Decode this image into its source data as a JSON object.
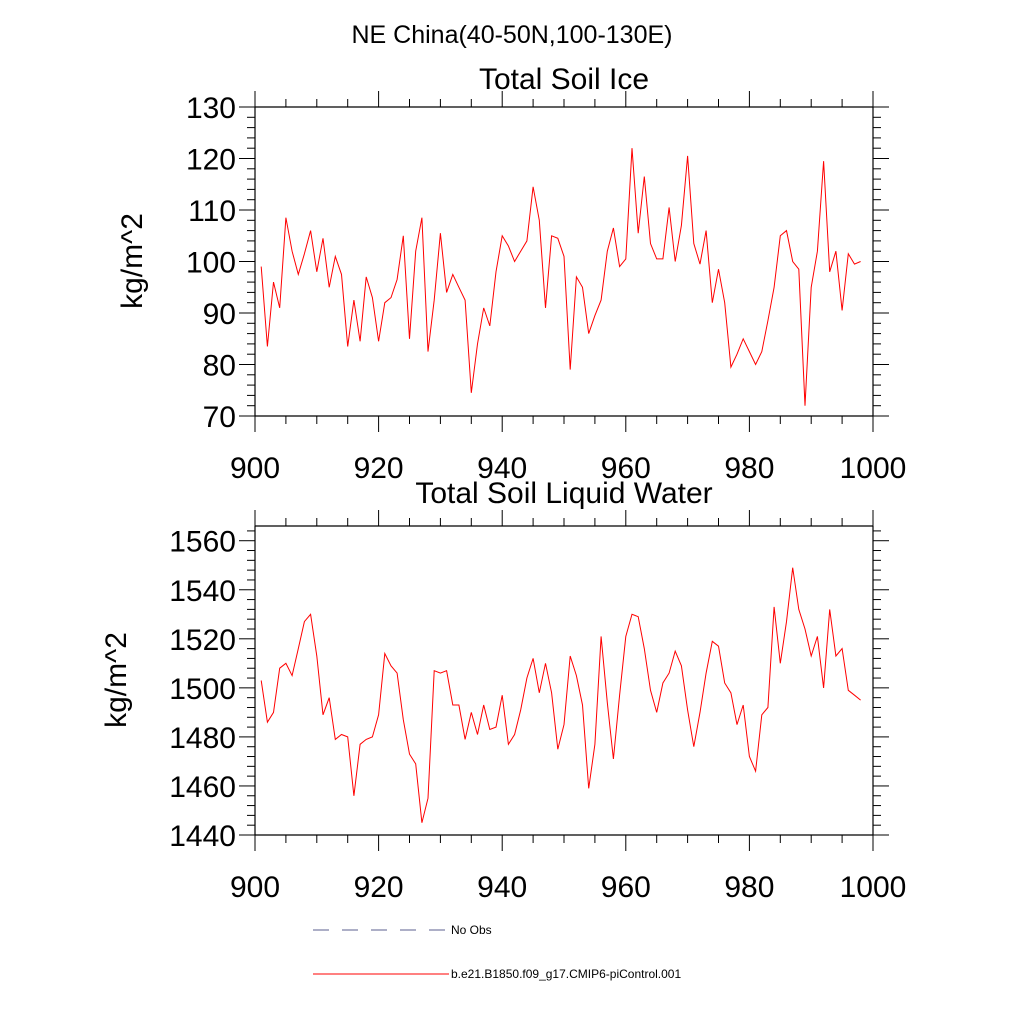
{
  "figure_title": "NE China(40-50N,100-130E)",
  "legend": {
    "entries": [
      {
        "label": "No Obs",
        "color": "#5b5f8f",
        "dash": true
      },
      {
        "label": "b.e21.B1850.f09_g17.CMIP6-piControl.001",
        "color": "#ff0000",
        "dash": false
      }
    ]
  },
  "chart_data": [
    {
      "type": "line",
      "title": "Total Soil Ice",
      "xlabel": "",
      "ylabel": "kg/m^2",
      "xlim": [
        900,
        1000
      ],
      "ylim": [
        70,
        130
      ],
      "xticks": [
        900,
        920,
        940,
        960,
        980,
        1000
      ],
      "yticks": [
        70,
        80,
        90,
        100,
        110,
        120,
        130
      ],
      "grid": false,
      "series": [
        {
          "color": "#ff0000",
          "x": [
            901,
            902,
            903,
            904,
            905,
            906,
            907,
            908,
            909,
            910,
            911,
            912,
            913,
            914,
            915,
            916,
            917,
            918,
            919,
            920,
            921,
            922,
            923,
            924,
            925,
            926,
            927,
            928,
            929,
            930,
            931,
            932,
            933,
            934,
            935,
            936,
            937,
            938,
            939,
            940,
            941,
            942,
            943,
            944,
            945,
            946,
            947,
            948,
            949,
            950,
            951,
            952,
            953,
            954,
            955,
            956,
            957,
            958,
            959,
            960,
            961,
            962,
            963,
            964,
            965,
            966,
            967,
            968,
            969,
            970,
            971,
            972,
            973,
            974,
            975,
            976,
            977,
            978,
            979,
            980,
            981,
            982,
            983,
            984,
            985,
            986,
            987,
            988,
            989,
            990,
            991,
            992,
            993,
            994,
            995,
            996,
            997,
            998
          ],
          "y": [
            99,
            83.5,
            96,
            91,
            108.5,
            102,
            97.5,
            101.5,
            106,
            98,
            104.5,
            95,
            101,
            97.5,
            83.5,
            92.5,
            84.5,
            97,
            93,
            84.5,
            92,
            93,
            96.5,
            105,
            85,
            102,
            108.5,
            82.5,
            92.5,
            105.5,
            94,
            97.5,
            95,
            92.5,
            74.5,
            84,
            91,
            87.5,
            98,
            105,
            103,
            100,
            102,
            104,
            114.5,
            108,
            91,
            105,
            104.5,
            101,
            79,
            97,
            95,
            86,
            89.5,
            92.5,
            102,
            106.5,
            99,
            100.5,
            122,
            105.5,
            116.5,
            103.5,
            100.5,
            100.5,
            110.5,
            100,
            107,
            120.5,
            103.5,
            99.5,
            106,
            92,
            98.5,
            92,
            79.5,
            82,
            85,
            82.5,
            80,
            82.5,
            88.5,
            95,
            105,
            106,
            100,
            98.5,
            72,
            95,
            102,
            119.5,
            98,
            102,
            90.5,
            101.5,
            99.5,
            100
          ]
        }
      ]
    },
    {
      "type": "line",
      "title": "Total Soil Liquid Water",
      "xlabel": "",
      "ylabel": "kg/m^2",
      "xlim": [
        900,
        1000
      ],
      "ylim": [
        1440,
        1566
      ],
      "xticks": [
        900,
        920,
        940,
        960,
        980,
        1000
      ],
      "yticks": [
        1440,
        1460,
        1480,
        1500,
        1520,
        1540,
        1560
      ],
      "grid": false,
      "series": [
        {
          "color": "#ff0000",
          "x": [
            901,
            902,
            903,
            904,
            905,
            906,
            907,
            908,
            909,
            910,
            911,
            912,
            913,
            914,
            915,
            916,
            917,
            918,
            919,
            920,
            921,
            922,
            923,
            924,
            925,
            926,
            927,
            928,
            929,
            930,
            931,
            932,
            933,
            934,
            935,
            936,
            937,
            938,
            939,
            940,
            941,
            942,
            943,
            944,
            945,
            946,
            947,
            948,
            949,
            950,
            951,
            952,
            953,
            954,
            955,
            956,
            957,
            958,
            959,
            960,
            961,
            962,
            963,
            964,
            965,
            966,
            967,
            968,
            969,
            970,
            971,
            972,
            973,
            974,
            975,
            976,
            977,
            978,
            979,
            980,
            981,
            982,
            983,
            984,
            985,
            986,
            987,
            988,
            989,
            990,
            991,
            992,
            993,
            994,
            995,
            996,
            997,
            998
          ],
          "y": [
            1503,
            1486,
            1490,
            1508,
            1510,
            1505,
            1516,
            1527,
            1530,
            1513,
            1489,
            1496,
            1479,
            1481,
            1480,
            1456,
            1477,
            1479,
            1480,
            1489,
            1514,
            1509,
            1506,
            1487,
            1473,
            1469,
            1445,
            1455,
            1507,
            1506,
            1507,
            1493,
            1493,
            1479,
            1490,
            1481,
            1493,
            1483,
            1484,
            1497,
            1477,
            1481,
            1491,
            1504,
            1512,
            1498,
            1510,
            1498,
            1475,
            1485,
            1513,
            1505,
            1493,
            1459,
            1477,
            1521,
            1494,
            1471,
            1497,
            1521,
            1530,
            1529,
            1516,
            1499,
            1490,
            1502,
            1506,
            1515,
            1509,
            1491,
            1476,
            1490,
            1506,
            1519,
            1517,
            1502,
            1498,
            1485,
            1493,
            1472,
            1466,
            1489,
            1492,
            1533,
            1510,
            1527,
            1549,
            1532,
            1524,
            1513,
            1521,
            1500,
            1532,
            1513,
            1516,
            1499,
            1497,
            1495
          ]
        }
      ]
    }
  ]
}
